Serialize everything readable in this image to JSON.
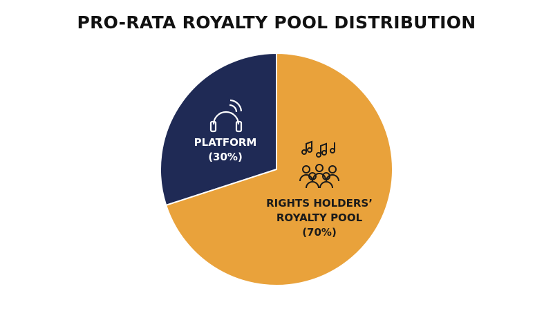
{
  "chart_data": {
    "type": "pie",
    "title": "PRO-RATA ROYALTY POOL DISTRIBUTION",
    "categories": [
      "PLATFORM",
      "RIGHTS HOLDERS’ ROYALTY POOL"
    ],
    "values": [
      30,
      70
    ],
    "value_labels": [
      "(30%)",
      "(70%)"
    ],
    "colors": [
      "#1f2a55",
      "#e9a23b"
    ]
  }
}
